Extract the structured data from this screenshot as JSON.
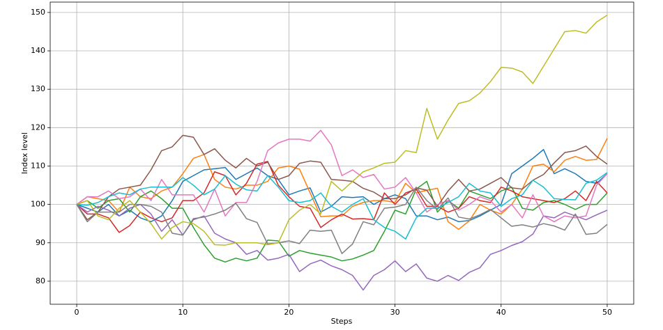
{
  "chart_data": {
    "type": "line",
    "xlabel": "Steps",
    "ylabel": "Index level",
    "x": [
      0,
      1,
      2,
      3,
      4,
      5,
      6,
      7,
      8,
      9,
      10,
      11,
      12,
      13,
      14,
      15,
      16,
      17,
      18,
      19,
      20,
      21,
      22,
      23,
      24,
      25,
      26,
      27,
      28,
      29,
      30,
      31,
      32,
      33,
      34,
      35,
      36,
      37,
      38,
      39,
      40,
      41,
      42,
      43,
      44,
      45,
      46,
      47,
      48,
      49,
      50
    ],
    "xlim": [
      -2.5,
      52.5
    ],
    "xticks": [
      0,
      10,
      20,
      30,
      40,
      50
    ],
    "ylim": [
      74,
      152.7
    ],
    "yticks": [
      80,
      90,
      100,
      110,
      120,
      130,
      140,
      150
    ],
    "grid": true,
    "series": [
      {
        "color": "#1f77b4",
        "values": [
          100,
          99,
          98,
          100,
          97,
          98.5,
          96.5,
          95.5,
          97,
          101,
          106,
          107.5,
          109,
          109.3,
          109.6,
          106.5,
          108,
          109.5,
          107.5,
          106.5,
          102.5,
          103.5,
          104.3,
          98,
          99.5,
          102,
          101.8,
          102,
          100,
          101.5,
          102.5,
          101.5,
          97,
          97,
          96,
          96.7,
          95.5,
          95.8,
          97,
          98.5,
          100,
          108,
          110,
          112,
          114.3,
          108,
          109.3,
          108,
          106,
          105.5,
          108
        ]
      },
      {
        "color": "#ff7f0e",
        "values": [
          100,
          102,
          101.5,
          101,
          98,
          104.5,
          102,
          101.5,
          103.5,
          104.5,
          108,
          112,
          113,
          106.5,
          104.5,
          104,
          105,
          105,
          106,
          109.5,
          110,
          109.2,
          103,
          96.8,
          97,
          97,
          99.5,
          100.5,
          101,
          101,
          100.5,
          105.5,
          103,
          103.7,
          104.2,
          95.5,
          93.5,
          95.7,
          100,
          98.5,
          97.5,
          100,
          104,
          110,
          110.5,
          108.5,
          111.5,
          112.5,
          111.5,
          111.7,
          117.2
        ]
      },
      {
        "color": "#2ca02c",
        "values": [
          100,
          101,
          99,
          101,
          101.5,
          98,
          102,
          103.5,
          101.5,
          99,
          99,
          94,
          89.5,
          86,
          85,
          86,
          85.3,
          86,
          90.7,
          90.5,
          86.5,
          88,
          87.3,
          86.8,
          86.3,
          85.3,
          85.8,
          86.8,
          88,
          93,
          98.5,
          97.5,
          104,
          106,
          98,
          101,
          99,
          103.5,
          102.5,
          101.5,
          103.5,
          104.5,
          99,
          98.5,
          100.5,
          101,
          100,
          98.7,
          100,
          100,
          103
        ]
      },
      {
        "color": "#d62728",
        "values": [
          100,
          97.5,
          97.5,
          96.5,
          92.7,
          94.5,
          98,
          96.5,
          95.5,
          96.5,
          101,
          101,
          103,
          108.5,
          107.5,
          102.5,
          105.5,
          110.5,
          111.2,
          105,
          102,
          99.5,
          99,
          94,
          96,
          97.5,
          96.2,
          96.3,
          96,
          103,
          100,
          103,
          104,
          99.5,
          99.5,
          98,
          99,
          102,
          101,
          100.5,
          104.5,
          103.5,
          102,
          101.5,
          101,
          100.5,
          101.5,
          103.5,
          101,
          106,
          103
        ]
      },
      {
        "color": "#9467bd",
        "values": [
          100,
          98,
          99.5,
          98.5,
          97,
          99,
          100,
          97.5,
          93,
          96,
          92,
          96,
          97,
          92.5,
          91,
          90,
          87,
          88,
          85.5,
          86,
          87,
          82.5,
          84.5,
          85.5,
          84,
          83,
          81.5,
          77.7,
          81.5,
          83,
          85.3,
          82.5,
          84.5,
          80.8,
          80,
          81.5,
          80.2,
          82.3,
          83.5,
          87,
          88,
          89.3,
          90.3,
          92.3,
          97,
          96.5,
          98,
          97,
          96,
          97.3,
          98.5
        ]
      },
      {
        "color": "#8c564b",
        "values": [
          100,
          96,
          98,
          102,
          104,
          104.5,
          105,
          109,
          114,
          115,
          118,
          117.5,
          113,
          114.5,
          111.5,
          109.5,
          112,
          110,
          111,
          106.5,
          107.5,
          110.7,
          111.3,
          111,
          106.5,
          106.3,
          106,
          104.2,
          103.2,
          101.5,
          101.5,
          102.5,
          104.3,
          103.7,
          99.5,
          103.5,
          106.5,
          103.5,
          104,
          105.5,
          107,
          104.3,
          104,
          106.3,
          107.8,
          110.8,
          113.5,
          114,
          115.2,
          112.5,
          110.5
        ]
      },
      {
        "color": "#e377c2",
        "values": [
          100,
          102,
          102,
          103.5,
          101.5,
          102,
          104,
          101,
          106.5,
          102.5,
          102.5,
          102.5,
          98,
          104,
          97,
          100.5,
          100.5,
          106,
          114,
          116,
          117,
          117,
          116.5,
          119.3,
          115.5,
          107.5,
          109,
          107,
          107.8,
          104,
          104.5,
          107,
          103,
          98,
          100,
          101,
          98.5,
          100,
          102,
          101,
          98,
          100,
          96.5,
          102.5,
          97,
          95.5,
          97,
          96.5,
          97,
          105,
          108
        ]
      },
      {
        "color": "#7f7f7f",
        "values": [
          100,
          95.5,
          98,
          98,
          98,
          100,
          100,
          99.5,
          98,
          92.5,
          92,
          96.3,
          96.7,
          97.5,
          98.5,
          100.3,
          96.3,
          95.3,
          89.7,
          90,
          90.5,
          89.8,
          93.3,
          93,
          93.3,
          87.2,
          89.7,
          95.5,
          94.7,
          99,
          99.3,
          100,
          104.5,
          101,
          98.7,
          101.7,
          96.7,
          96.2,
          97.3,
          98.7,
          96.5,
          94.3,
          94.7,
          94.1,
          95,
          94.4,
          93.3,
          97.5,
          92.2,
          92.5,
          94.8
        ]
      },
      {
        "color": "#bcbd22",
        "values": [
          100,
          101,
          97,
          96,
          99,
          101,
          98,
          95,
          91,
          94,
          95.5,
          95,
          93,
          89.5,
          89.4,
          90,
          90,
          90,
          89.5,
          90,
          96,
          98.5,
          100,
          97.5,
          106,
          103.5,
          106,
          108.5,
          109.5,
          110.7,
          111,
          114,
          113.5,
          125,
          117,
          122,
          126.3,
          127,
          129,
          132,
          135.7,
          135.5,
          134.5,
          131.5,
          136,
          140.5,
          145,
          145.3,
          144.6,
          147.5,
          149.3
        ]
      },
      {
        "color": "#17becf",
        "values": [
          100,
          99.8,
          100.5,
          102,
          103,
          102.5,
          104,
          104.5,
          104.5,
          104.5,
          107,
          105,
          102.5,
          104,
          107.5,
          105.3,
          103.8,
          103.5,
          107.5,
          104.5,
          101,
          100.5,
          101,
          103,
          99.5,
          98,
          100,
          101.5,
          96,
          94,
          93,
          91,
          96.5,
          99,
          99,
          100.5,
          102,
          105.5,
          103.5,
          103,
          99.5,
          101.5,
          102.5,
          106.3,
          104.5,
          101.5,
          101.3,
          101.2,
          105.5,
          106.3,
          108.3
        ]
      }
    ]
  }
}
